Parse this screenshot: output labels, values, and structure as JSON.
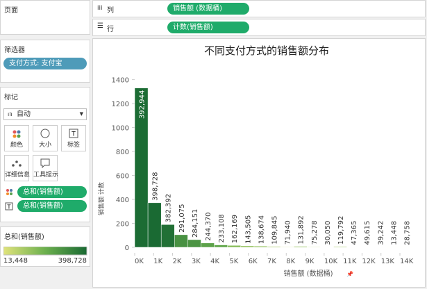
{
  "pages_panel": {
    "title": "页面"
  },
  "filters": {
    "title": "筛选器",
    "items": [
      "支付方式: 支付宝"
    ]
  },
  "marks": {
    "title": "标记",
    "mark_type": "自动",
    "cards": [
      "颜色",
      "大小",
      "标签",
      "详细信息",
      "工具提示"
    ],
    "fields": [
      "总和(销售额)",
      "总和(销售额)"
    ]
  },
  "shelves": {
    "columns": {
      "label": "列",
      "pill": "销售额 (数据桶)"
    },
    "rows": {
      "label": "行",
      "pill": "计数(销售额)"
    }
  },
  "legend": {
    "title": "总和(销售额)",
    "min": {
      "value": 13448,
      "label": "13,448"
    },
    "max": {
      "value": 398728,
      "label": "398,728"
    },
    "colors": [
      "#e0e37c",
      "#6cb04e",
      "#1a6a33"
    ]
  },
  "chart_data": {
    "type": "histogram",
    "title": "不同支付方式的销售额分布",
    "x_label": "销售额 (数据桶)",
    "y_label": "销售额 计数",
    "bins": [
      0,
      700,
      1400,
      2100,
      2800,
      3500,
      4200,
      4900,
      5600,
      6300,
      7000,
      7700,
      8400,
      9100,
      9800,
      10500,
      11200,
      11900,
      12600,
      13300,
      14000,
      14700
    ],
    "values": [
      1330,
      372,
      190,
      105,
      64,
      36,
      20,
      16,
      12,
      10,
      7,
      4,
      8,
      4,
      2,
      6,
      2,
      2,
      2,
      1,
      1
    ],
    "sum_values": [
      392944,
      398728,
      382392,
      291075,
      284151,
      244370,
      233108,
      162169,
      143505,
      138674,
      109845,
      71940,
      131892,
      75278,
      30050,
      119792,
      47365,
      49615,
      39242,
      13448,
      28758
    ],
    "sum_labels": [
      "392,944",
      "398,728",
      "382,392",
      "291,075",
      "284,151",
      "244,370",
      "233,108",
      "162,169",
      "143,505",
      "138,674",
      "109,845",
      "71,940",
      "131,892",
      "75,278",
      "30,050",
      "119,792",
      "47,365",
      "49,615",
      "39,242",
      "13,448",
      "28,758"
    ],
    "xlim": [
      0,
      15100
    ],
    "xticks": [
      {
        "value": 0,
        "label": "0K"
      },
      {
        "value": 1000,
        "label": "1K"
      },
      {
        "value": 2000,
        "label": "2K"
      },
      {
        "value": 3000,
        "label": "3K"
      },
      {
        "value": 4000,
        "label": "4K"
      },
      {
        "value": 5000,
        "label": "5K"
      },
      {
        "value": 6000,
        "label": "6K"
      },
      {
        "value": 7000,
        "label": "7K"
      },
      {
        "value": 8000,
        "label": "8K"
      },
      {
        "value": 9000,
        "label": "9K"
      },
      {
        "value": 10000,
        "label": "10K"
      },
      {
        "value": 11000,
        "label": "11K"
      },
      {
        "value": 12000,
        "label": "12K"
      },
      {
        "value": 13000,
        "label": "13K"
      },
      {
        "value": 14000,
        "label": "14K"
      }
    ],
    "ylim": [
      0,
      1450
    ],
    "yticks": [
      0,
      200,
      400,
      600,
      800,
      1000,
      1200,
      1400
    ]
  }
}
